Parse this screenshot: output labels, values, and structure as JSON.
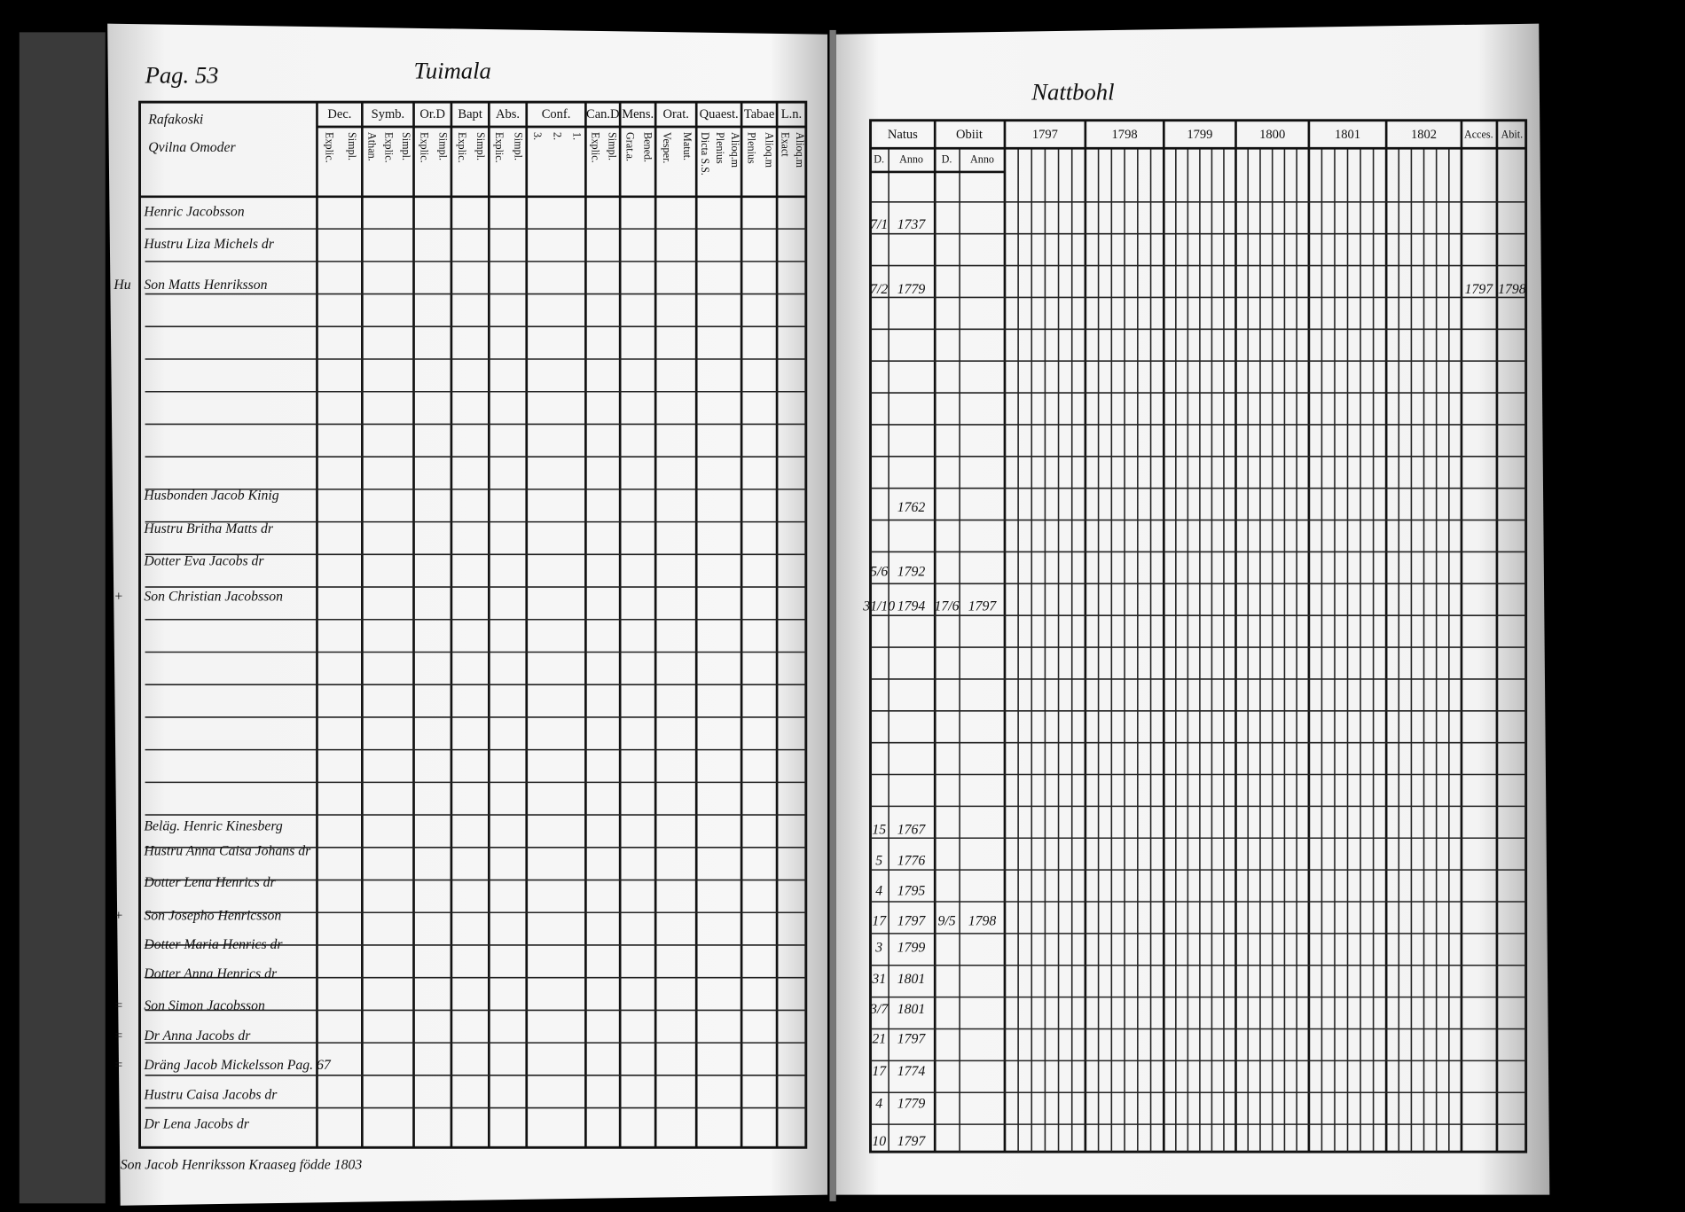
{
  "left_page": {
    "page_label": "Pag. 53",
    "heading": "Tuimala",
    "household_header": [
      "Rafakoski",
      "Qvilna Omoder"
    ],
    "columns": [
      {
        "title": "Dec.",
        "sub": [
          "Explic.",
          "Simpl."
        ]
      },
      {
        "title": "Symb.",
        "sub": [
          "Athan.",
          "Explic.",
          "Simpl."
        ]
      },
      {
        "title": "Or.D",
        "sub": [
          "Explic.",
          "Simpl."
        ]
      },
      {
        "title": "Bapt",
        "sub": [
          "Explic.",
          "Simpl."
        ]
      },
      {
        "title": "Abs.",
        "sub": [
          "Explic.",
          "Simpl."
        ]
      },
      {
        "title": "Conf.",
        "sub": [
          "3.",
          "2.",
          "1."
        ]
      },
      {
        "title": "Can.D",
        "sub": [
          "Explic.",
          "Simpl."
        ]
      },
      {
        "title": "Mens.",
        "sub": [
          "Grat.a.",
          "Bened."
        ]
      },
      {
        "title": "Orat.",
        "sub": [
          "Vesper.",
          "Matut."
        ]
      },
      {
        "title": "Quaest.",
        "sub": [
          "Dicta S.S.",
          "Plenius",
          "Alioq.m"
        ]
      },
      {
        "title": "Tabae",
        "sub": [
          "Plenius",
          "Alioq.m"
        ]
      },
      {
        "title": "L.n.",
        "sub": [
          "Exact",
          "Alioq.m"
        ]
      }
    ],
    "rows": [
      "Henric Jacobsson",
      "Hustru Liza Michels dr",
      "Son Matts Henriksson",
      "Husbonden Jacob Kinig",
      "Hustru Britha Matts dr",
      "Dotter Eva Jacobs dr",
      "Son Christian Jacobsson",
      "Beläg. Henric Kinesberg",
      "Hustru Anna Caisa Johans dr",
      "Dotter Lena Henrics dr",
      "Son Josepho Henricsson",
      "Dotter Maria Henrics dr",
      "Dotter Anna Henrics dr",
      "Son Simon Jacobsson",
      "Dr Anna Jacobs dr",
      "Dräng Jacob Mickelsson Pag. 67",
      "Hustru Caisa Jacobs dr",
      "Dr Lena Jacobs dr"
    ],
    "margin_notes": [
      {
        "row": 2,
        "text": "Hu"
      },
      {
        "row": 6,
        "text": "+"
      },
      {
        "row": 10,
        "text": "+"
      },
      {
        "row": 13,
        "text": "="
      },
      {
        "row": 14,
        "text": "="
      },
      {
        "row": 15,
        "text": "="
      }
    ],
    "footer": "Son Jacob Henriksson Kraaseg födde 1803"
  },
  "right_page": {
    "heading": "Nattbohl",
    "natus": "Natus",
    "obiit": "Obiit",
    "day": "D.",
    "anno": "Anno",
    "years": [
      "1797",
      "1798",
      "1799",
      "1800",
      "1801",
      "1802"
    ],
    "accessus": "Acces.",
    "abitus": "Abit.",
    "entries": [
      {
        "day": "7/1",
        "year": "1737"
      },
      {
        "day": "7/2",
        "year": "1779",
        "accessus": "1797",
        "abitus": "1798"
      },
      {
        "year": "1762"
      },
      {
        "day": "5/6",
        "year": "1792"
      },
      {
        "day": "31/10",
        "year": "1794",
        "death_day": "17/6",
        "death_year": "1797"
      },
      {
        "day": "15",
        "year": "1767"
      },
      {
        "day": "5",
        "year": "1776"
      },
      {
        "day": "4",
        "year": "1795"
      },
      {
        "day": "17",
        "year": "1797",
        "death_day": "9/5",
        "death_year": "1798"
      },
      {
        "day": "3",
        "year": "1799"
      },
      {
        "day": "31",
        "year": "1801"
      },
      {
        "day": "3/7",
        "year": "1801"
      },
      {
        "day": "21",
        "year": "1797"
      },
      {
        "day": "17",
        "year": "1774"
      },
      {
        "day": "4",
        "year": "1779"
      },
      {
        "day": "10",
        "year": "1797"
      }
    ]
  }
}
